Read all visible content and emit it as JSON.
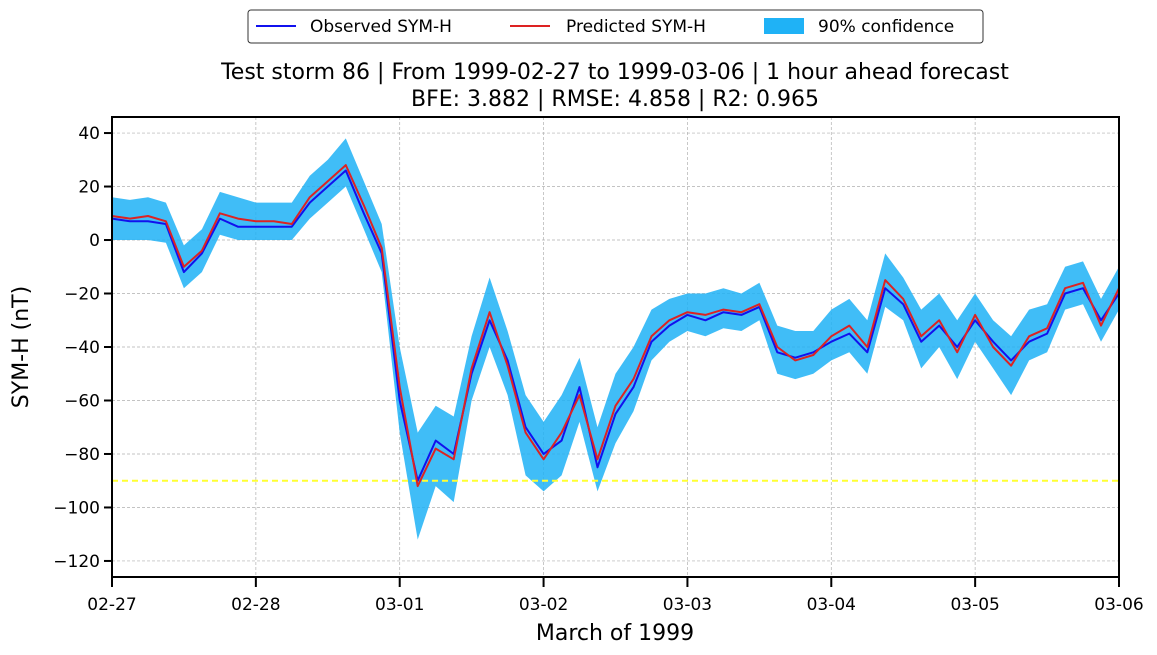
{
  "chart_data": {
    "type": "line",
    "title": "Test storm 86 | From 1999-02-27 to 1999-03-06 | 1 hour ahead forecast",
    "subtitle": "BFE: 3.882 | RMSE: 4.858 | R2: 0.965",
    "xlabel": "March of 1999",
    "ylabel": "SYM-H (nT)",
    "xlim": [
      "1999-02-27",
      "1999-03-06"
    ],
    "ylim": [
      -126,
      46
    ],
    "x_ticks": [
      "02-27",
      "02-28",
      "03-01",
      "03-02",
      "03-03",
      "03-04",
      "03-05",
      "03-06"
    ],
    "y_ticks": [
      40,
      20,
      0,
      -20,
      -40,
      -60,
      -80,
      -100,
      -120
    ],
    "grid": true,
    "legend_position": "top-center",
    "colors": {
      "observed": "#1111ee",
      "predicted": "#dd2222",
      "confidence": "#1fb2f6",
      "threshold": "#ffff33"
    },
    "legend": {
      "observed": "Observed SYM-H",
      "predicted": "Predicted SYM-H",
      "confidence": "90% confidence"
    },
    "threshold_line": {
      "y": -90,
      "style": "dashed"
    },
    "series": [
      {
        "name": "Observed SYM-H",
        "x": [
          "1999-02-27 00:00",
          "1999-02-27 03:00",
          "1999-02-27 06:00",
          "1999-02-27 09:00",
          "1999-02-27 12:00",
          "1999-02-27 15:00",
          "1999-02-27 18:00",
          "1999-02-27 21:00",
          "1999-02-28 00:00",
          "1999-02-28 03:00",
          "1999-02-28 06:00",
          "1999-02-28 09:00",
          "1999-02-28 12:00",
          "1999-02-28 15:00",
          "1999-02-28 18:00",
          "1999-02-28 21:00",
          "1999-03-01 00:00",
          "1999-03-01 03:00",
          "1999-03-01 06:00",
          "1999-03-01 09:00",
          "1999-03-01 12:00",
          "1999-03-01 15:00",
          "1999-03-01 18:00",
          "1999-03-01 21:00",
          "1999-03-02 00:00",
          "1999-03-02 03:00",
          "1999-03-02 06:00",
          "1999-03-02 09:00",
          "1999-03-02 12:00",
          "1999-03-02 15:00",
          "1999-03-02 18:00",
          "1999-03-02 21:00",
          "1999-03-03 00:00",
          "1999-03-03 03:00",
          "1999-03-03 06:00",
          "1999-03-03 09:00",
          "1999-03-03 12:00",
          "1999-03-03 15:00",
          "1999-03-03 18:00",
          "1999-03-03 21:00",
          "1999-03-04 00:00",
          "1999-03-04 03:00",
          "1999-03-04 06:00",
          "1999-03-04 09:00",
          "1999-03-04 12:00",
          "1999-03-04 15:00",
          "1999-03-04 18:00",
          "1999-03-04 21:00",
          "1999-03-05 00:00",
          "1999-03-05 03:00",
          "1999-03-05 06:00",
          "1999-03-05 09:00",
          "1999-03-05 12:00",
          "1999-03-05 15:00",
          "1999-03-05 18:00",
          "1999-03-05 21:00",
          "1999-03-06 00:00"
        ],
        "values": [
          8,
          7,
          7,
          6,
          -12,
          -5,
          8,
          5,
          5,
          5,
          5,
          14,
          20,
          26,
          10,
          -5,
          -60,
          -90,
          -75,
          -80,
          -50,
          -30,
          -45,
          -70,
          -80,
          -75,
          -55,
          -85,
          -65,
          -55,
          -38,
          -32,
          -28,
          -30,
          -27,
          -28,
          -25,
          -42,
          -44,
          -42,
          -38,
          -35,
          -42,
          -18,
          -24,
          -38,
          -32,
          -40,
          -30,
          -38,
          -45,
          -38,
          -35,
          -20,
          -18,
          -30,
          -20
        ]
      },
      {
        "name": "Predicted SYM-H",
        "x": [
          "1999-02-27 00:00",
          "1999-02-27 03:00",
          "1999-02-27 06:00",
          "1999-02-27 09:00",
          "1999-02-27 12:00",
          "1999-02-27 15:00",
          "1999-02-27 18:00",
          "1999-02-27 21:00",
          "1999-02-28 00:00",
          "1999-02-28 03:00",
          "1999-02-28 06:00",
          "1999-02-28 09:00",
          "1999-02-28 12:00",
          "1999-02-28 15:00",
          "1999-02-28 18:00",
          "1999-02-28 21:00",
          "1999-03-01 00:00",
          "1999-03-01 03:00",
          "1999-03-01 06:00",
          "1999-03-01 09:00",
          "1999-03-01 12:00",
          "1999-03-01 15:00",
          "1999-03-01 18:00",
          "1999-03-01 21:00",
          "1999-03-02 00:00",
          "1999-03-02 03:00",
          "1999-03-02 06:00",
          "1999-03-02 09:00",
          "1999-03-02 12:00",
          "1999-03-02 15:00",
          "1999-03-02 18:00",
          "1999-03-02 21:00",
          "1999-03-03 00:00",
          "1999-03-03 03:00",
          "1999-03-03 06:00",
          "1999-03-03 09:00",
          "1999-03-03 12:00",
          "1999-03-03 15:00",
          "1999-03-03 18:00",
          "1999-03-03 21:00",
          "1999-03-04 00:00",
          "1999-03-04 03:00",
          "1999-03-04 06:00",
          "1999-03-04 09:00",
          "1999-03-04 12:00",
          "1999-03-04 15:00",
          "1999-03-04 18:00",
          "1999-03-04 21:00",
          "1999-03-05 00:00",
          "1999-03-05 03:00",
          "1999-03-05 06:00",
          "1999-03-05 09:00",
          "1999-03-05 12:00",
          "1999-03-05 15:00",
          "1999-03-05 18:00",
          "1999-03-05 21:00",
          "1999-03-06 00:00"
        ],
        "values": [
          9,
          8,
          9,
          7,
          -10,
          -4,
          10,
          8,
          7,
          7,
          6,
          16,
          22,
          28,
          13,
          -3,
          -55,
          -92,
          -78,
          -82,
          -48,
          -27,
          -47,
          -72,
          -82,
          -72,
          -58,
          -82,
          -62,
          -52,
          -36,
          -30,
          -27,
          -28,
          -26,
          -27,
          -24,
          -40,
          -45,
          -43,
          -36,
          -32,
          -40,
          -15,
          -22,
          -36,
          -30,
          -42,
          -28,
          -40,
          -47,
          -36,
          -33,
          -18,
          -16,
          -32,
          -18
        ]
      },
      {
        "name": "90% confidence",
        "x": [
          "1999-02-27 00:00",
          "1999-02-27 03:00",
          "1999-02-27 06:00",
          "1999-02-27 09:00",
          "1999-02-27 12:00",
          "1999-02-27 15:00",
          "1999-02-27 18:00",
          "1999-02-27 21:00",
          "1999-02-28 00:00",
          "1999-02-28 03:00",
          "1999-02-28 06:00",
          "1999-02-28 09:00",
          "1999-02-28 12:00",
          "1999-02-28 15:00",
          "1999-02-28 18:00",
          "1999-02-28 21:00",
          "1999-03-01 00:00",
          "1999-03-01 03:00",
          "1999-03-01 06:00",
          "1999-03-01 09:00",
          "1999-03-01 12:00",
          "1999-03-01 15:00",
          "1999-03-01 18:00",
          "1999-03-01 21:00",
          "1999-03-02 00:00",
          "1999-03-02 03:00",
          "1999-03-02 06:00",
          "1999-03-02 09:00",
          "1999-03-02 12:00",
          "1999-03-02 15:00",
          "1999-03-02 18:00",
          "1999-03-02 21:00",
          "1999-03-03 00:00",
          "1999-03-03 03:00",
          "1999-03-03 06:00",
          "1999-03-03 09:00",
          "1999-03-03 12:00",
          "1999-03-03 15:00",
          "1999-03-03 18:00",
          "1999-03-03 21:00",
          "1999-03-04 00:00",
          "1999-03-04 03:00",
          "1999-03-04 06:00",
          "1999-03-04 09:00",
          "1999-03-04 12:00",
          "1999-03-04 15:00",
          "1999-03-04 18:00",
          "1999-03-04 21:00",
          "1999-03-05 00:00",
          "1999-03-05 03:00",
          "1999-03-05 06:00",
          "1999-03-05 09:00",
          "1999-03-05 12:00",
          "1999-03-05 15:00",
          "1999-03-05 18:00",
          "1999-03-05 21:00",
          "1999-03-06 00:00"
        ],
        "lower": [
          0,
          0,
          0,
          -1,
          -18,
          -12,
          2,
          0,
          0,
          0,
          0,
          8,
          14,
          20,
          4,
          -12,
          -72,
          -112,
          -92,
          -98,
          -60,
          -40,
          -58,
          -88,
          -94,
          -88,
          -68,
          -94,
          -76,
          -64,
          -45,
          -38,
          -34,
          -36,
          -33,
          -34,
          -30,
          -50,
          -52,
          -50,
          -45,
          -42,
          -50,
          -25,
          -30,
          -48,
          -40,
          -52,
          -38,
          -48,
          -58,
          -45,
          -42,
          -26,
          -24,
          -38,
          -26
        ],
        "upper": [
          16,
          15,
          16,
          14,
          -2,
          4,
          18,
          16,
          14,
          14,
          14,
          24,
          30,
          38,
          22,
          6,
          -40,
          -72,
          -62,
          -66,
          -36,
          -14,
          -34,
          -58,
          -68,
          -58,
          -44,
          -70,
          -50,
          -40,
          -26,
          -22,
          -20,
          -20,
          -18,
          -20,
          -16,
          -32,
          -34,
          -34,
          -26,
          -22,
          -30,
          -5,
          -14,
          -26,
          -20,
          -30,
          -20,
          -30,
          -36,
          -26,
          -24,
          -10,
          -8,
          -22,
          -10
        ]
      }
    ]
  }
}
